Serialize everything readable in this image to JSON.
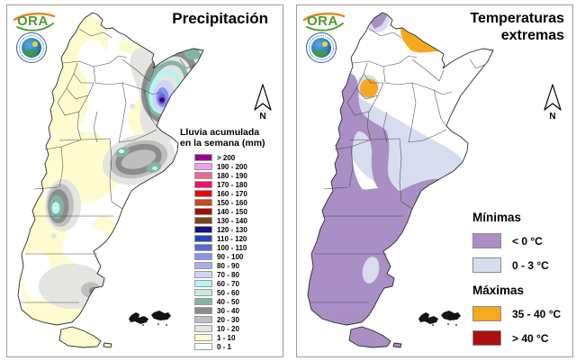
{
  "panels": {
    "precipitation": {
      "title": "Precipitación",
      "logo_text": "ORA",
      "north_label": "N",
      "legend": {
        "title": "Lluvia acumulada\nen la semana (mm)",
        "entries": [
          {
            "range": "> 200",
            "color": "#990099"
          },
          {
            "range": "190 - 200",
            "color": "#F0A0E8"
          },
          {
            "range": "180 - 190",
            "color": "#F06890"
          },
          {
            "range": "170 - 180",
            "color": "#FF0A64"
          },
          {
            "range": "160 - 170",
            "color": "#EE0000"
          },
          {
            "range": "150 - 160",
            "color": "#C74A1E"
          },
          {
            "range": "140 - 150",
            "color": "#A01010"
          },
          {
            "range": "130 - 140",
            "color": "#784512"
          },
          {
            "range": "120 - 130",
            "color": "#121280"
          },
          {
            "range": "110 - 120",
            "color": "#2348C0"
          },
          {
            "range": "100 - 110",
            "color": "#5A6BD4"
          },
          {
            "range": "90 - 100",
            "color": "#8894EC"
          },
          {
            "range": "80 - 90",
            "color": "#A8AEF2"
          },
          {
            "range": "70 - 80",
            "color": "#CFD4FA"
          },
          {
            "range": "60 - 70",
            "color": "#B2F6F2"
          },
          {
            "range": "50 - 60",
            "color": "#CBEADD"
          },
          {
            "range": "40 - 50",
            "color": "#84B4A6"
          },
          {
            "range": "30 - 40",
            "color": "#8C8C8C"
          },
          {
            "range": "20 - 30",
            "color": "#BEBEBE"
          },
          {
            "range": "10 - 20",
            "color": "#E4E4E0"
          },
          {
            "range": "1 - 10",
            "color": "#FDFCCE"
          },
          {
            "range": "0 - 1",
            "color": "#FFFFFF"
          }
        ]
      }
    },
    "temperature": {
      "title": "Temperaturas\nextremas",
      "logo_text": "ORA",
      "north_label": "N",
      "legend": {
        "sections": [
          {
            "heading": "Mínimas",
            "items": [
              {
                "label": "< 0 °C",
                "color": "#A98FC4"
              },
              {
                "label": "0 - 3 °C",
                "color": "#D8DCEF"
              }
            ]
          },
          {
            "heading": "Máximas",
            "items": [
              {
                "label": "35 - 40 °C",
                "color": "#F6A81F"
              },
              {
                "label": "> 40 °C",
                "color": "#AB0F12"
              }
            ]
          }
        ]
      }
    }
  }
}
